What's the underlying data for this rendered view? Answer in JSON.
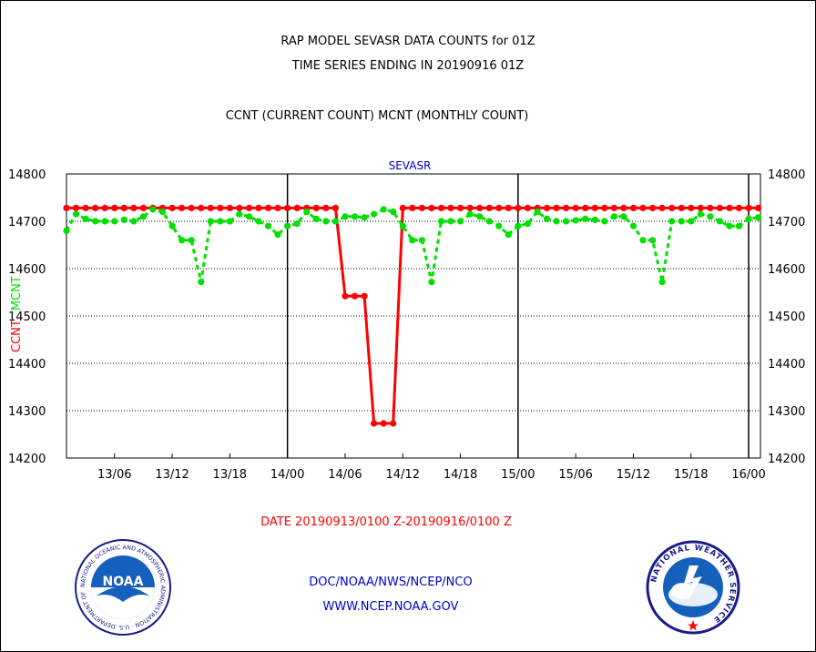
{
  "header": {
    "title_line1": "RAP MODEL SEVASR DATA COUNTS for 01Z",
    "title_line2": "TIME SERIES ENDING IN 20190916 01Z",
    "subtitle": "CCNT (CURRENT COUNT) MCNT (MONTHLY COUNT)"
  },
  "footer": {
    "date_range": "DATE 20190913/0100 Z-20190916/0100 Z",
    "credit_line1": "DOC/NOAA/NWS/NCEP/NCO",
    "credit_line2": "WWW.NCEP.NOAA.GOV"
  },
  "logos": {
    "noaa": {
      "icon": "noaa-seal-icon",
      "text": "NOAA",
      "ring_text": "NATIONAL OCEANIC AND ATMOSPHERIC ADMINISTRATION · U.S. DEPARTMENT OF COMMERCE"
    },
    "nws": {
      "icon": "nws-seal-icon",
      "ring_text": "NATIONAL WEATHER SERVICE"
    }
  },
  "chart_data": {
    "type": "line",
    "title": "SEVASR",
    "ylabel_left_parts": [
      {
        "text": "CCNT",
        "color": "#ff0000"
      },
      {
        "text": "MCNT",
        "color": "#00e000"
      }
    ],
    "ylim": [
      14200,
      14800
    ],
    "y_ticks": [
      14200,
      14300,
      14400,
      14500,
      14600,
      14700,
      14800
    ],
    "x_range": [
      "13/01",
      "16/01"
    ],
    "x_tick_labels": [
      "13/06",
      "13/12",
      "13/18",
      "14/00",
      "14/06",
      "14/12",
      "14/18",
      "15/00",
      "15/06",
      "15/12",
      "15/18",
      "16/00"
    ],
    "day_boundaries": [
      "14/00",
      "15/00",
      "16/00"
    ],
    "grid": true,
    "colors": {
      "ccnt": "#ff0000",
      "mcnt": "#00e000",
      "title": "#0000cc"
    },
    "x": [
      "13/01",
      "13/02",
      "13/03",
      "13/04",
      "13/05",
      "13/06",
      "13/07",
      "13/08",
      "13/09",
      "13/10",
      "13/11",
      "13/12",
      "13/13",
      "13/14",
      "13/15",
      "13/16",
      "13/17",
      "13/18",
      "13/19",
      "13/20",
      "13/21",
      "13/22",
      "13/23",
      "14/00",
      "14/01",
      "14/02",
      "14/03",
      "14/04",
      "14/05",
      "14/06",
      "14/07",
      "14/08",
      "14/09",
      "14/10",
      "14/11",
      "14/12",
      "14/13",
      "14/14",
      "14/15",
      "14/16",
      "14/17",
      "14/18",
      "14/19",
      "14/20",
      "14/21",
      "14/22",
      "14/23",
      "15/00",
      "15/01",
      "15/02",
      "15/03",
      "15/04",
      "15/05",
      "15/06",
      "15/07",
      "15/08",
      "15/09",
      "15/10",
      "15/11",
      "15/12",
      "15/13",
      "15/14",
      "15/15",
      "15/16",
      "15/17",
      "15/18",
      "15/19",
      "15/20",
      "15/21",
      "15/22",
      "15/23",
      "16/00",
      "16/01"
    ],
    "series": [
      {
        "name": "CCNT",
        "color": "#ff0000",
        "style": "solid",
        "values": [
          14728,
          14728,
          14728,
          14728,
          14728,
          14728,
          14728,
          14728,
          14728,
          14728,
          14728,
          14728,
          14728,
          14728,
          14728,
          14728,
          14728,
          14728,
          14728,
          14728,
          14728,
          14728,
          14728,
          14728,
          14728,
          14728,
          14728,
          14728,
          14728,
          14542,
          14542,
          14542,
          14273,
          14273,
          14273,
          14728,
          14728,
          14728,
          14728,
          14728,
          14728,
          14728,
          14728,
          14728,
          14728,
          14728,
          14728,
          14728,
          14728,
          14728,
          14728,
          14728,
          14728,
          14728,
          14728,
          14728,
          14728,
          14728,
          14728,
          14728,
          14728,
          14728,
          14728,
          14728,
          14728,
          14728,
          14728,
          14728,
          14728,
          14728,
          14728,
          14728,
          14728
        ]
      },
      {
        "name": "MCNT",
        "color": "#00e000",
        "style": "dashed",
        "values": [
          14680,
          14715,
          14705,
          14700,
          14700,
          14700,
          14703,
          14700,
          14710,
          14725,
          14720,
          14690,
          14660,
          14660,
          14572,
          14700,
          14700,
          14700,
          14715,
          14710,
          14700,
          14690,
          14672,
          14690,
          14695,
          14720,
          14705,
          14700,
          14700,
          14710,
          14710,
          14708,
          14715,
          14725,
          14720,
          14690,
          14660,
          14660,
          14572,
          14700,
          14700,
          14700,
          14715,
          14710,
          14700,
          14690,
          14672,
          14690,
          14695,
          14720,
          14705,
          14700,
          14700,
          14702,
          14705,
          14703,
          14700,
          14710,
          14710,
          14690,
          14660,
          14660,
          14572,
          14700,
          14700,
          14700,
          14715,
          14710,
          14700,
          14690,
          14690,
          14705,
          14708
        ]
      }
    ]
  }
}
